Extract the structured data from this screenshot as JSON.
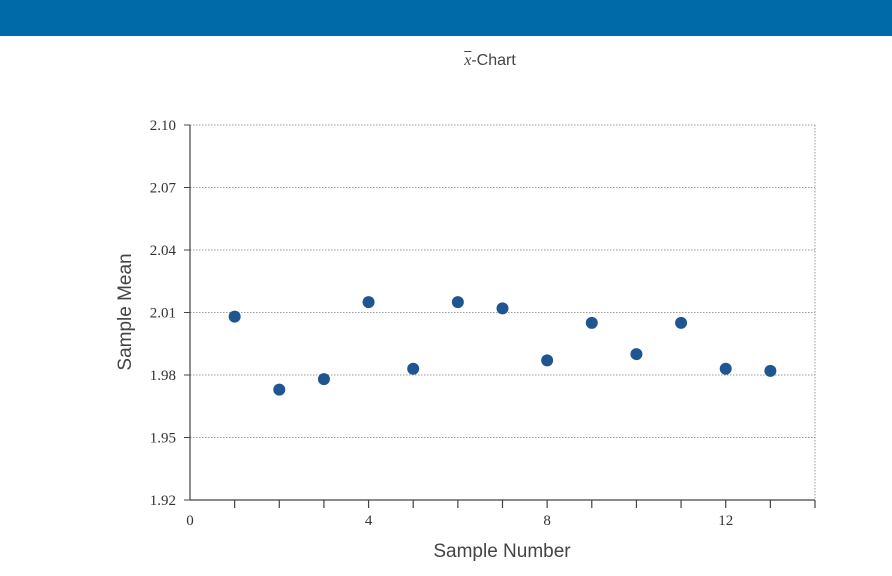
{
  "header": {
    "bar_color": "#0069A8"
  },
  "chart_data": {
    "type": "scatter",
    "title_symbol": "x",
    "title_suffix": "-Chart",
    "xlabel": "Sample Number",
    "ylabel": "Sample Mean",
    "xlim": [
      0,
      14
    ],
    "ylim": [
      1.92,
      2.1
    ],
    "x_ticks": [
      0,
      4,
      8,
      12
    ],
    "x_minor_ticks": [
      1,
      2,
      3,
      4,
      5,
      6,
      7,
      8,
      9,
      10,
      11,
      12,
      13,
      14
    ],
    "y_ticks": [
      "1.92",
      "1.95",
      "1.98",
      "2.01",
      "2.04",
      "2.07",
      "2.10"
    ],
    "grid": true,
    "point_color": "#1F5591",
    "points": [
      {
        "x": 1,
        "y": 2.008
      },
      {
        "x": 2,
        "y": 1.973
      },
      {
        "x": 3,
        "y": 1.978
      },
      {
        "x": 4,
        "y": 2.015
      },
      {
        "x": 5,
        "y": 1.983
      },
      {
        "x": 6,
        "y": 2.015
      },
      {
        "x": 7,
        "y": 2.012
      },
      {
        "x": 8,
        "y": 1.987
      },
      {
        "x": 9,
        "y": 2.005
      },
      {
        "x": 10,
        "y": 1.99
      },
      {
        "x": 11,
        "y": 2.005
      },
      {
        "x": 12,
        "y": 1.983
      },
      {
        "x": 13,
        "y": 1.982
      }
    ]
  }
}
